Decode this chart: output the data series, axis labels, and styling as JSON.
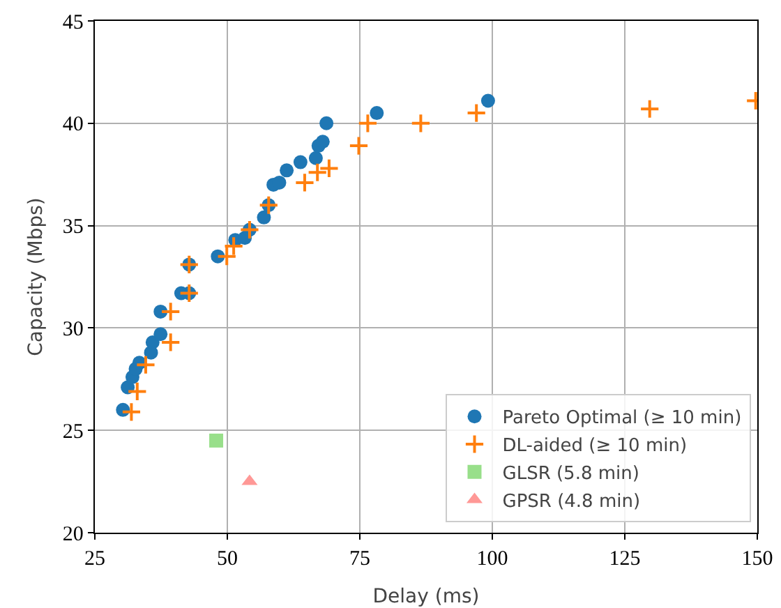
{
  "chart_data": {
    "type": "scatter",
    "xlabel": "Delay (ms)",
    "ylabel": "Capacity (Mbps)",
    "xlim": [
      25,
      150
    ],
    "xticks": [
      25,
      50,
      75,
      100,
      125,
      150
    ],
    "ylim": [
      20,
      45
    ],
    "yticks": [
      20,
      25,
      30,
      35,
      40,
      45
    ],
    "grid": true,
    "legend": "bottom right",
    "series": [
      {
        "name": "Pareto Optimal (≥ 10 min)",
        "color": "#1f77b4",
        "marker": "circle",
        "x": [
          30.3,
          31.2,
          32.1,
          32.7,
          33.4,
          35.6,
          35.9,
          37.4,
          37.4,
          41.3,
          42.8,
          42.8,
          48.2,
          51.5,
          53.3,
          54.2,
          56.9,
          57.8,
          58.7,
          59.8,
          61.2,
          63.8,
          66.7,
          67.2,
          68.0,
          68.7,
          78.2,
          99.2
        ],
        "values": [
          26.0,
          27.1,
          27.6,
          28.0,
          28.3,
          28.8,
          29.3,
          29.7,
          30.8,
          31.7,
          31.7,
          33.1,
          33.5,
          34.3,
          34.4,
          34.8,
          35.4,
          36.0,
          37.0,
          37.1,
          37.7,
          38.1,
          38.3,
          38.9,
          39.1,
          40.0,
          40.5,
          41.1
        ]
      },
      {
        "name": "DL-aided (≥ 10 min)",
        "color": "#ff7f0e",
        "marker": "cross",
        "x": [
          31.9,
          33.0,
          34.6,
          39.3,
          39.3,
          42.8,
          42.8,
          49.9,
          51.2,
          54.2,
          57.8,
          64.6,
          67.0,
          69.2,
          74.8,
          76.5,
          86.5,
          97.0,
          129.7,
          149.7
        ],
        "values": [
          25.9,
          26.9,
          28.2,
          29.3,
          30.8,
          31.7,
          33.1,
          33.5,
          34.0,
          34.8,
          36.0,
          37.1,
          37.6,
          37.8,
          38.9,
          40.0,
          40.0,
          40.5,
          40.7,
          41.1
        ]
      },
      {
        "name": "GLSR (5.8 min)",
        "color": "#98df8a",
        "marker": "square",
        "x": [
          47.9
        ],
        "values": [
          24.5
        ]
      },
      {
        "name": "GPSR (4.8 min)",
        "color": "#ff9896",
        "marker": "triangle",
        "x": [
          54.2
        ],
        "values": [
          22.5
        ]
      }
    ]
  }
}
